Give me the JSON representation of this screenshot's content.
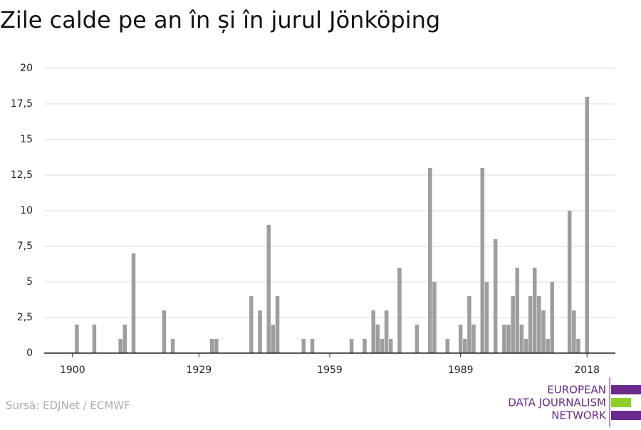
{
  "chart_data": {
    "type": "bar",
    "title": "Zile calde pe an în și în jurul Jönköping",
    "source": "Sursă: EDJNet / ECMWF",
    "logo": [
      "EUROPEAN",
      "DATA JOURNALISM",
      "NETWORK"
    ],
    "color": "#9e9e9e",
    "grid": true,
    "x": [
      1901,
      1905,
      1911,
      1912,
      1914,
      1921,
      1923,
      1932,
      1933,
      1941,
      1943,
      1945,
      1946,
      1947,
      1953,
      1955,
      1964,
      1967,
      1969,
      1970,
      1971,
      1972,
      1973,
      1975,
      1979,
      1982,
      1983,
      1986,
      1989,
      1990,
      1991,
      1992,
      1994,
      1995,
      1997,
      1999,
      2000,
      2001,
      2002,
      2003,
      2004,
      2005,
      2006,
      2007,
      2008,
      2009,
      2010,
      2014,
      2015,
      2016,
      2018
    ],
    "values": [
      2,
      2,
      1,
      2,
      7,
      3,
      1,
      1,
      1,
      4,
      3,
      9,
      2,
      4,
      1,
      1,
      1,
      1,
      3,
      2,
      1,
      3,
      1,
      6,
      2,
      13,
      5,
      1,
      2,
      1,
      4,
      2,
      13,
      5,
      8,
      2,
      2,
      4,
      6,
      2,
      1,
      4,
      6,
      4,
      3,
      1,
      5,
      10,
      3,
      1,
      18
    ],
    "xlim": [
      1893.5,
      2024.5
    ],
    "xticks": [
      1900,
      1929,
      1959,
      1989,
      2018
    ],
    "ylim": [
      0,
      20
    ],
    "yticks": [
      0,
      {
        "value": 2.5,
        "label": "2,5"
      },
      5,
      {
        "value": 7.5,
        "label": "7,5"
      },
      10,
      {
        "value": 12.5,
        "label": "12,5"
      },
      15,
      {
        "value": 17.5,
        "label": "17,5"
      },
      20
    ]
  }
}
